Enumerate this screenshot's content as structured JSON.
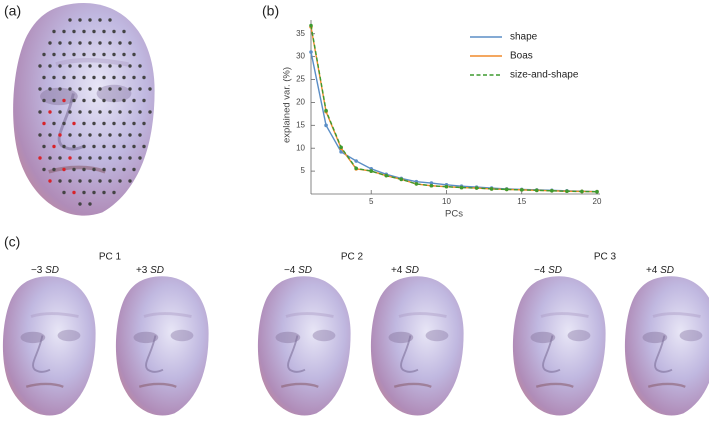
{
  "panel_labels": [
    "(a)",
    "(b)",
    "(c)"
  ],
  "chart_data": {
    "type": "line",
    "xlabel": "PCs",
    "ylabel": "explained var. (%)",
    "x": [
      1,
      2,
      3,
      4,
      5,
      6,
      7,
      8,
      9,
      10,
      11,
      12,
      13,
      14,
      15,
      16,
      17,
      18,
      19,
      20
    ],
    "xlim": [
      1,
      20
    ],
    "xticks": [
      5,
      10,
      15,
      20
    ],
    "ylim": [
      0,
      38
    ],
    "yticks": [
      5,
      10,
      15,
      20,
      25,
      30,
      35
    ],
    "series": [
      {
        "name": "shape",
        "color": "#5b8ec6",
        "dash": false,
        "values": [
          31,
          15,
          9.2,
          7.2,
          5.5,
          4.3,
          3.4,
          2.7,
          2.4,
          2.0,
          1.7,
          1.5,
          1.3,
          1.1,
          1.0,
          0.9,
          0.8,
          0.7,
          0.6,
          0.5
        ]
      },
      {
        "name": "Boas",
        "color": "#f08a2c",
        "dash": false,
        "values": [
          36.5,
          18,
          10,
          5.5,
          5.0,
          4.0,
          3.2,
          2.2,
          1.8,
          1.6,
          1.4,
          1.3,
          1.1,
          1.0,
          0.9,
          0.8,
          0.7,
          0.6,
          0.55,
          0.5
        ]
      },
      {
        "name": "size-and-shape",
        "color": "#3d9a2f",
        "dash": true,
        "values": [
          36.8,
          18.2,
          10.2,
          5.6,
          5.0,
          4.0,
          3.2,
          2.2,
          1.8,
          1.6,
          1.4,
          1.3,
          1.1,
          1.0,
          0.9,
          0.8,
          0.7,
          0.6,
          0.55,
          0.5
        ]
      }
    ]
  },
  "pc_groups": [
    {
      "title": "PC 1",
      "left": {
        "amount": "−3",
        "unit": "SD"
      },
      "right": {
        "amount": "+3",
        "unit": "SD"
      }
    },
    {
      "title": "PC 2",
      "left": {
        "amount": "−4",
        "unit": "SD"
      },
      "right": {
        "amount": "+4",
        "unit": "SD"
      }
    },
    {
      "title": "PC 3",
      "left": {
        "amount": "−4",
        "unit": "SD"
      },
      "right": {
        "amount": "+4",
        "unit": "SD"
      }
    }
  ]
}
